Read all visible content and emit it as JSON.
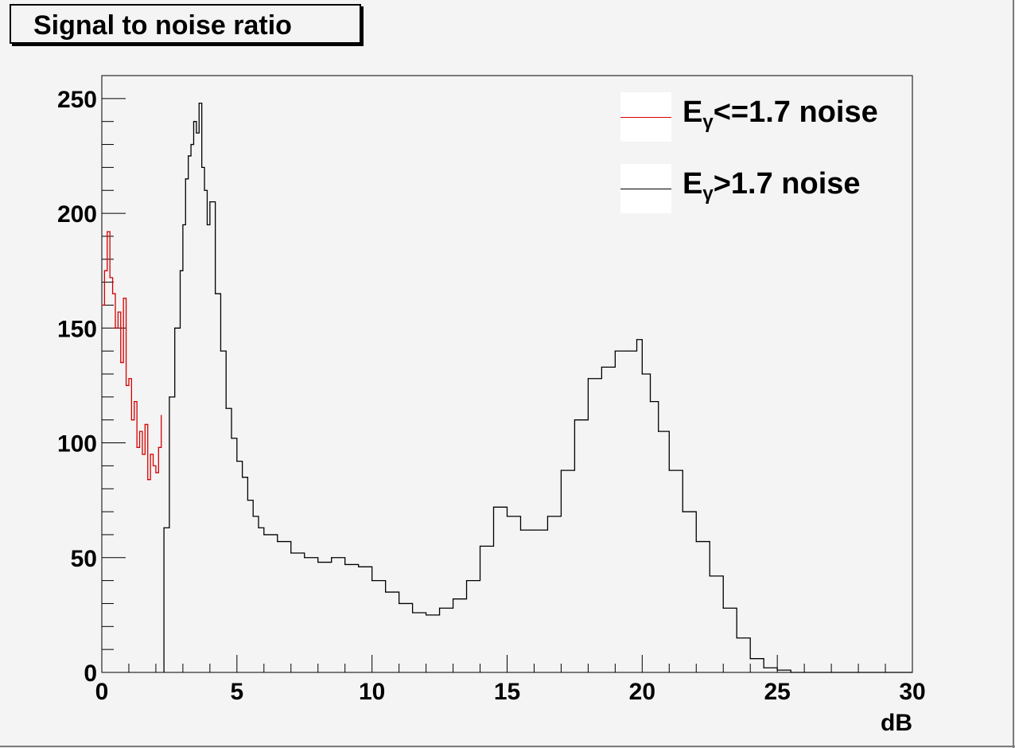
{
  "colors": {
    "background": "#f4f4f4",
    "frame": "#000000",
    "series_low": "#d40000",
    "series_high": "#000000"
  },
  "chart_data": {
    "type": "line",
    "title": "Signal to noise ratio",
    "xlabel": "dB",
    "ylabel": "",
    "xlim": [
      0,
      30
    ],
    "ylim": [
      0,
      260
    ],
    "x_ticks": [
      0,
      5,
      10,
      15,
      20,
      25,
      30
    ],
    "y_ticks": [
      0,
      50,
      100,
      150,
      200,
      250
    ],
    "grid": false,
    "legend_position": "top-right",
    "step": true,
    "series": [
      {
        "name": "Eγ<=1.7 noise",
        "legend": {
          "main": "E",
          "sub": "γ",
          "rest": "<=1.7 noise"
        },
        "color": "#d40000",
        "x": [
          0.0,
          0.1,
          0.2,
          0.3,
          0.4,
          0.5,
          0.6,
          0.7,
          0.8,
          0.9,
          1.0,
          1.1,
          1.2,
          1.3,
          1.4,
          1.5,
          1.6,
          1.7,
          1.8,
          1.9,
          2.0,
          2.1,
          2.2
        ],
        "y": [
          160,
          175,
          192,
          172,
          165,
          150,
          157,
          135,
          163,
          125,
          128,
          110,
          118,
          98,
          105,
          95,
          108,
          84,
          95,
          90,
          87,
          98,
          112
        ]
      },
      {
        "name": "Eγ>1.7 noise",
        "legend": {
          "main": "E",
          "sub": "γ",
          "rest": ">1.7 noise"
        },
        "color": "#000000",
        "x": [
          2.3,
          2.5,
          2.7,
          2.9,
          3.0,
          3.1,
          3.2,
          3.3,
          3.4,
          3.5,
          3.6,
          3.7,
          3.8,
          3.9,
          4.0,
          4.2,
          4.4,
          4.6,
          4.8,
          5.0,
          5.2,
          5.4,
          5.6,
          5.8,
          6.0,
          6.5,
          7.0,
          7.5,
          8.0,
          8.5,
          9.0,
          9.5,
          10.0,
          10.5,
          11.0,
          11.5,
          12.0,
          12.5,
          13.0,
          13.5,
          14.0,
          14.5,
          15.0,
          15.5,
          16.0,
          16.5,
          17.0,
          17.5,
          18.0,
          18.5,
          19.0,
          19.5,
          19.8,
          20.0,
          20.3,
          20.6,
          21.0,
          21.5,
          22.0,
          22.5,
          23.0,
          23.5,
          24.0,
          24.5,
          25.0,
          25.5,
          26.0,
          27.0,
          28.0,
          29.0,
          30.0
        ],
        "y": [
          63,
          120,
          150,
          175,
          195,
          215,
          225,
          230,
          240,
          235,
          248,
          220,
          210,
          195,
          205,
          165,
          140,
          115,
          102,
          92,
          85,
          75,
          68,
          63,
          60,
          57,
          52,
          50,
          48,
          50,
          47,
          46,
          40,
          35,
          30,
          26,
          25,
          28,
          32,
          40,
          55,
          72,
          68,
          62,
          62,
          68,
          88,
          110,
          128,
          133,
          140,
          140,
          145,
          130,
          118,
          105,
          88,
          70,
          57,
          42,
          28,
          15,
          6,
          2,
          1,
          0,
          0,
          0,
          0,
          0,
          0
        ]
      }
    ]
  }
}
